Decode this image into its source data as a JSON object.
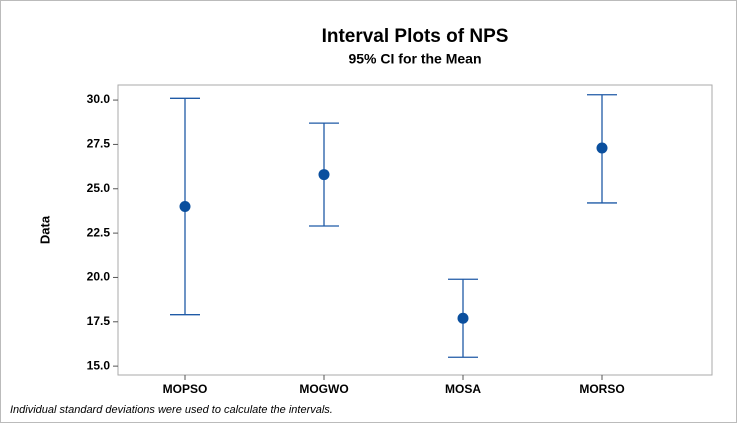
{
  "chart_data": {
    "type": "interval",
    "title": "Interval Plots of NPS",
    "subtitle": "95% CI for the Mean",
    "y_label": "Data",
    "footnote": "Individual standard deviations were used to calculate the intervals.",
    "categories": [
      "MOPSO",
      "MOGWO",
      "MOSA",
      "MORSO"
    ],
    "values": [
      24.0,
      25.8,
      17.7,
      27.3
    ],
    "lower": [
      17.9,
      22.9,
      15.5,
      24.2
    ],
    "upper": [
      30.1,
      28.7,
      19.9,
      30.3
    ],
    "color": "#1f5aa6",
    "ylim": [
      14.5,
      30.85
    ],
    "yticks": [
      {
        "value": 15,
        "label": "15.0"
      },
      {
        "value": 17.5,
        "label": "17.5"
      },
      {
        "value": 20,
        "label": "20.0"
      },
      {
        "value": 22.5,
        "label": "22.5"
      },
      {
        "value": 25,
        "label": "25.0"
      },
      {
        "value": 27.5,
        "label": "27.5"
      },
      {
        "value": 30,
        "label": "30.0"
      }
    ]
  }
}
